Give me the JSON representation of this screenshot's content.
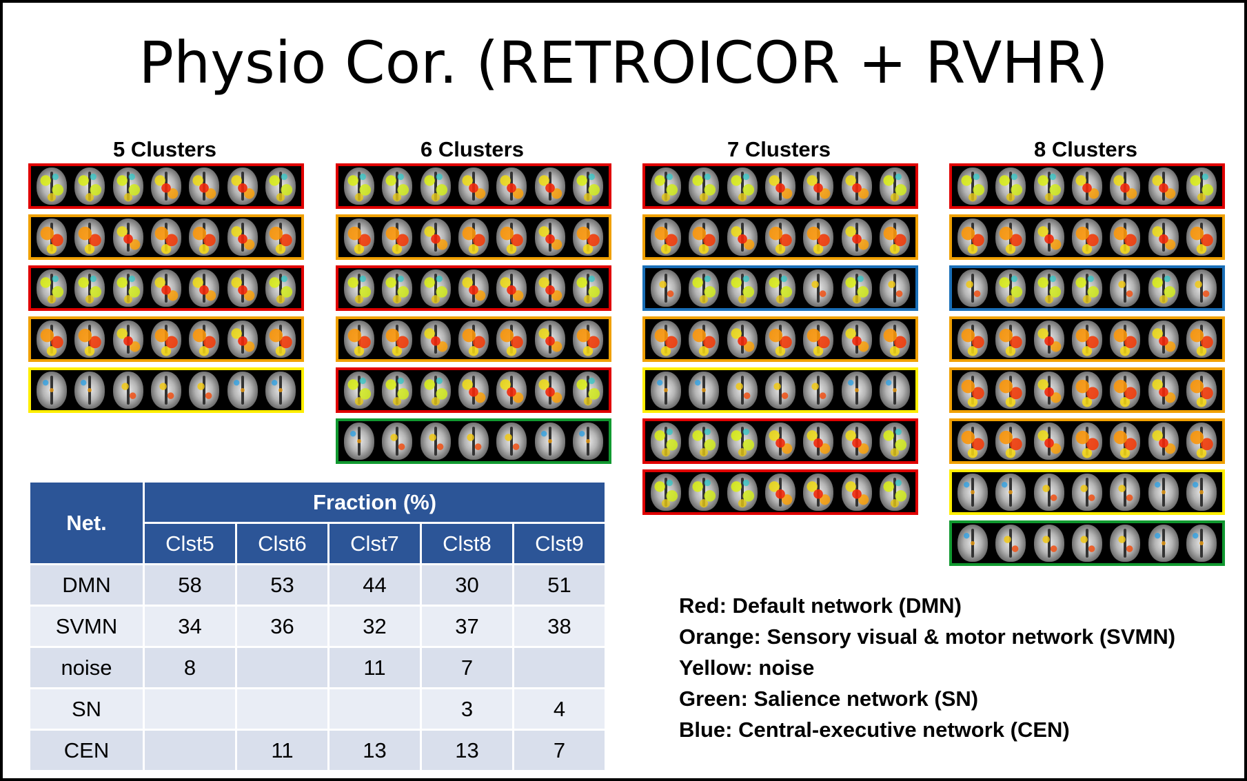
{
  "title": "Physio Cor. (RETROICOR + RVHR)",
  "groups": [
    {
      "label": "5 Clusters",
      "strips": [
        "red",
        "orange",
        "red",
        "orange",
        "yellow"
      ]
    },
    {
      "label": "6 Clusters",
      "strips": [
        "red",
        "orange",
        "red",
        "orange",
        "red",
        "green"
      ]
    },
    {
      "label": "7 Clusters",
      "strips": [
        "red",
        "orange",
        "blue",
        "orange",
        "yellow",
        "red",
        "red"
      ]
    },
    {
      "label": "8 Clusters",
      "strips": [
        "red",
        "orange",
        "blue",
        "orange",
        "orange",
        "orange",
        "yellow",
        "green"
      ]
    }
  ],
  "strip_colors": {
    "red": "#e00000",
    "orange": "#f0a000",
    "yellow": "#ffee00",
    "green": "#119930",
    "blue": "#1a6fb8"
  },
  "table": {
    "net_header": "Net.",
    "fraction_header": "Fraction (%)",
    "columns": [
      "Clst5",
      "Clst6",
      "Clst7",
      "Clst8",
      "Clst9"
    ],
    "rows": [
      {
        "net": "DMN",
        "values": [
          "58",
          "53",
          "44",
          "30",
          "51"
        ]
      },
      {
        "net": "SVMN",
        "values": [
          "34",
          "36",
          "32",
          "37",
          "38"
        ]
      },
      {
        "net": "noise",
        "values": [
          "8",
          "",
          "11",
          "7",
          ""
        ]
      },
      {
        "net": "SN",
        "values": [
          "",
          "",
          "",
          "3",
          "4"
        ]
      },
      {
        "net": "CEN",
        "values": [
          "",
          "11",
          "13",
          "13",
          "7"
        ]
      }
    ]
  },
  "legend": [
    "Red: Default network (DMN)",
    "Orange: Sensory visual & motor network (SVMN)",
    "Yellow: noise",
    "Green: Salience network (SN)",
    "Blue: Central-executive network (CEN)"
  ]
}
